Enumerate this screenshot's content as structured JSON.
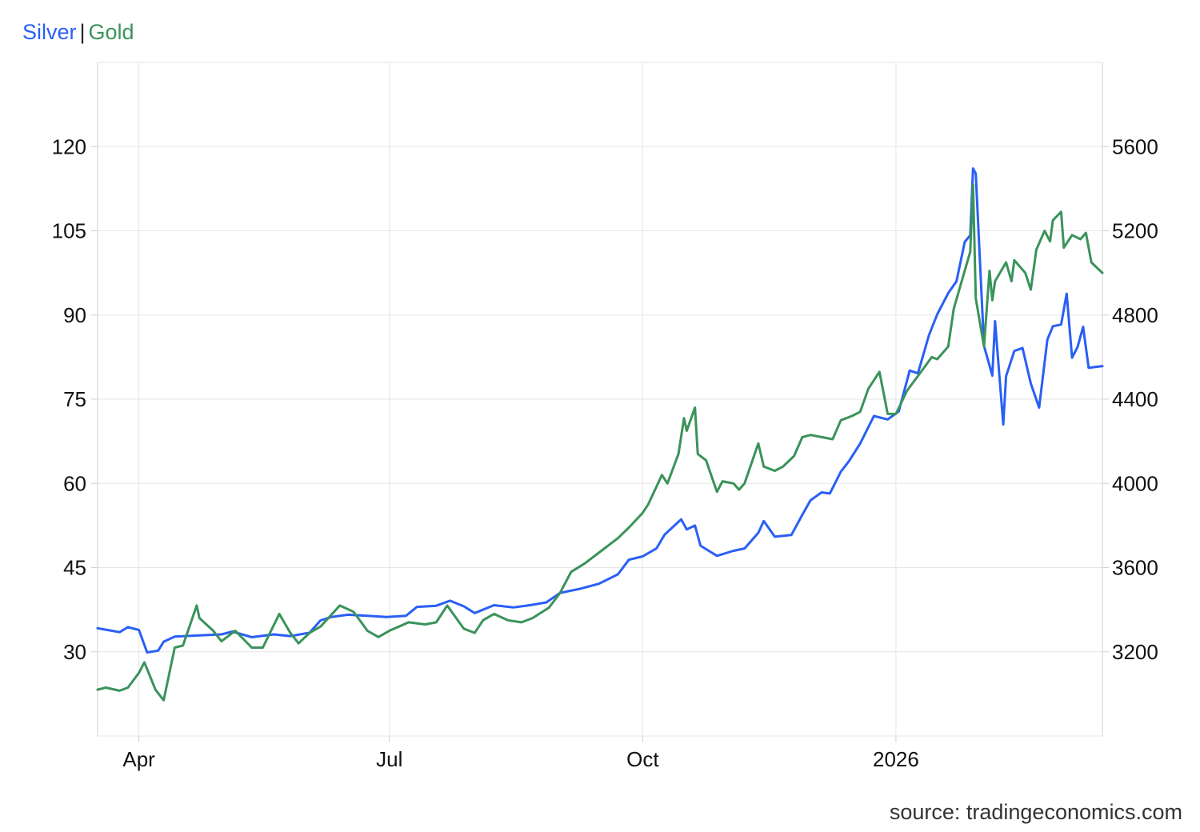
{
  "legend": {
    "left_label": "Silver",
    "separator": "|",
    "right_label": "Gold"
  },
  "source": "source: tradingeconomics.com",
  "colors": {
    "silver": "#2a5ff5",
    "gold": "#3a935a",
    "grid": "#e6e6e6",
    "axis": "#d0d0d0",
    "text": "#111111"
  },
  "chart_data": {
    "type": "line",
    "grid": true,
    "legend_position": "top-left",
    "x_tick_labels": [
      {
        "label": "Apr",
        "date": "2025-04-01"
      },
      {
        "label": "Jul",
        "date": "2025-07-01"
      },
      {
        "label": "Oct",
        "date": "2025-10-01"
      },
      {
        "label": "2026",
        "date": "2026-01-01"
      }
    ],
    "x_range": [
      "2025-03-17",
      "2026-03-17"
    ],
    "y_left": {
      "ticks": [
        30,
        45,
        60,
        75,
        90,
        105,
        120
      ],
      "range": [
        15,
        135
      ]
    },
    "y_right": {
      "ticks": [
        3200,
        3600,
        4000,
        4400,
        4800,
        5200,
        5600
      ],
      "range": [
        2800,
        6000
      ]
    },
    "series": [
      {
        "name": "Silver",
        "axis": "left",
        "points": [
          [
            "2025-03-17",
            34.2
          ],
          [
            "2025-03-25",
            33.5
          ],
          [
            "2025-03-28",
            34.4
          ],
          [
            "2025-04-01",
            33.9
          ],
          [
            "2025-04-04",
            29.9
          ],
          [
            "2025-04-08",
            30.2
          ],
          [
            "2025-04-10",
            31.8
          ],
          [
            "2025-04-14",
            32.7
          ],
          [
            "2025-04-22",
            32.9
          ],
          [
            "2025-05-01",
            33.1
          ],
          [
            "2025-05-05",
            33.6
          ],
          [
            "2025-05-12",
            32.6
          ],
          [
            "2025-05-20",
            33.1
          ],
          [
            "2025-05-26",
            32.8
          ],
          [
            "2025-06-02",
            33.4
          ],
          [
            "2025-06-06",
            35.6
          ],
          [
            "2025-06-10",
            36.2
          ],
          [
            "2025-06-16",
            36.6
          ],
          [
            "2025-06-23",
            36.4
          ],
          [
            "2025-06-30",
            36.2
          ],
          [
            "2025-07-07",
            36.4
          ],
          [
            "2025-07-11",
            38.0
          ],
          [
            "2025-07-18",
            38.2
          ],
          [
            "2025-07-23",
            39.1
          ],
          [
            "2025-07-28",
            38.1
          ],
          [
            "2025-08-01",
            36.9
          ],
          [
            "2025-08-08",
            38.3
          ],
          [
            "2025-08-15",
            37.9
          ],
          [
            "2025-08-21",
            38.3
          ],
          [
            "2025-08-27",
            38.8
          ],
          [
            "2025-09-01",
            40.5
          ],
          [
            "2025-09-08",
            41.2
          ],
          [
            "2025-09-15",
            42.1
          ],
          [
            "2025-09-22",
            43.8
          ],
          [
            "2025-09-26",
            46.4
          ],
          [
            "2025-10-01",
            47.0
          ],
          [
            "2025-10-06",
            48.4
          ],
          [
            "2025-10-09",
            50.9
          ],
          [
            "2025-10-13",
            52.7
          ],
          [
            "2025-10-15",
            53.6
          ],
          [
            "2025-10-17",
            51.8
          ],
          [
            "2025-10-20",
            52.5
          ],
          [
            "2025-10-22",
            48.9
          ],
          [
            "2025-10-28",
            47.1
          ],
          [
            "2025-11-03",
            48.0
          ],
          [
            "2025-11-07",
            48.4
          ],
          [
            "2025-11-12",
            51.2
          ],
          [
            "2025-11-14",
            53.3
          ],
          [
            "2025-11-18",
            50.5
          ],
          [
            "2025-11-24",
            50.8
          ],
          [
            "2025-11-28",
            54.4
          ],
          [
            "2025-12-01",
            57.0
          ],
          [
            "2025-12-05",
            58.4
          ],
          [
            "2025-12-08",
            58.2
          ],
          [
            "2025-12-12",
            62.1
          ],
          [
            "2025-12-15",
            64.0
          ],
          [
            "2025-12-19",
            67.1
          ],
          [
            "2025-12-24",
            72.0
          ],
          [
            "2025-12-29",
            71.4
          ],
          [
            "2026-01-02",
            72.8
          ],
          [
            "2026-01-06",
            80.1
          ],
          [
            "2026-01-09",
            79.6
          ],
          [
            "2026-01-13",
            86.4
          ],
          [
            "2026-01-16",
            90.1
          ],
          [
            "2026-01-20",
            93.9
          ],
          [
            "2026-01-23",
            96.0
          ],
          [
            "2026-01-26",
            103.0
          ],
          [
            "2026-01-28",
            104.2
          ],
          [
            "2026-01-29",
            116.1
          ],
          [
            "2026-01-30",
            115.2
          ],
          [
            "2026-02-02",
            84.5
          ],
          [
            "2026-02-05",
            79.2
          ],
          [
            "2026-02-06",
            88.9
          ],
          [
            "2026-02-09",
            70.5
          ],
          [
            "2026-02-10",
            79.1
          ],
          [
            "2026-02-13",
            83.6
          ],
          [
            "2026-02-16",
            84.1
          ],
          [
            "2026-02-19",
            77.8
          ],
          [
            "2026-02-22",
            73.5
          ],
          [
            "2026-02-25",
            85.6
          ],
          [
            "2026-02-27",
            88.0
          ],
          [
            "2026-03-02",
            88.3
          ],
          [
            "2026-03-04",
            93.8
          ],
          [
            "2026-03-06",
            82.4
          ],
          [
            "2026-03-08",
            84.3
          ],
          [
            "2026-03-10",
            87.9
          ],
          [
            "2026-03-12",
            80.6
          ],
          [
            "2026-03-17",
            80.9
          ]
        ]
      },
      {
        "name": "Gold",
        "axis": "right",
        "points": [
          [
            "2025-03-17",
            3020
          ],
          [
            "2025-03-20",
            3030
          ],
          [
            "2025-03-25",
            3015
          ],
          [
            "2025-03-28",
            3030
          ],
          [
            "2025-04-01",
            3100
          ],
          [
            "2025-04-03",
            3150
          ],
          [
            "2025-04-07",
            3020
          ],
          [
            "2025-04-10",
            2970
          ],
          [
            "2025-04-14",
            3220
          ],
          [
            "2025-04-17",
            3230
          ],
          [
            "2025-04-22",
            3420
          ],
          [
            "2025-04-23",
            3360
          ],
          [
            "2025-04-28",
            3300
          ],
          [
            "2025-05-01",
            3250
          ],
          [
            "2025-05-06",
            3300
          ],
          [
            "2025-05-12",
            3220
          ],
          [
            "2025-05-16",
            3220
          ],
          [
            "2025-05-22",
            3380
          ],
          [
            "2025-05-26",
            3290
          ],
          [
            "2025-05-29",
            3240
          ],
          [
            "2025-06-02",
            3290
          ],
          [
            "2025-06-06",
            3320
          ],
          [
            "2025-06-13",
            3420
          ],
          [
            "2025-06-18",
            3390
          ],
          [
            "2025-06-23",
            3300
          ],
          [
            "2025-06-27",
            3270
          ],
          [
            "2025-07-01",
            3300
          ],
          [
            "2025-07-08",
            3340
          ],
          [
            "2025-07-14",
            3330
          ],
          [
            "2025-07-18",
            3340
          ],
          [
            "2025-07-22",
            3420
          ],
          [
            "2025-07-28",
            3310
          ],
          [
            "2025-08-01",
            3290
          ],
          [
            "2025-08-04",
            3350
          ],
          [
            "2025-08-08",
            3380
          ],
          [
            "2025-08-13",
            3350
          ],
          [
            "2025-08-18",
            3340
          ],
          [
            "2025-08-22",
            3360
          ],
          [
            "2025-08-28",
            3410
          ],
          [
            "2025-09-01",
            3480
          ],
          [
            "2025-09-05",
            3580
          ],
          [
            "2025-09-10",
            3620
          ],
          [
            "2025-09-16",
            3680
          ],
          [
            "2025-09-22",
            3740
          ],
          [
            "2025-09-26",
            3790
          ],
          [
            "2025-10-01",
            3860
          ],
          [
            "2025-10-03",
            3900
          ],
          [
            "2025-10-08",
            4040
          ],
          [
            "2025-10-10",
            4000
          ],
          [
            "2025-10-14",
            4140
          ],
          [
            "2025-10-16",
            4310
          ],
          [
            "2025-10-17",
            4250
          ],
          [
            "2025-10-20",
            4360
          ],
          [
            "2025-10-21",
            4140
          ],
          [
            "2025-10-24",
            4110
          ],
          [
            "2025-10-28",
            3960
          ],
          [
            "2025-10-30",
            4010
          ],
          [
            "2025-11-03",
            4000
          ],
          [
            "2025-11-05",
            3970
          ],
          [
            "2025-11-07",
            4000
          ],
          [
            "2025-11-12",
            4190
          ],
          [
            "2025-11-14",
            4080
          ],
          [
            "2025-11-18",
            4060
          ],
          [
            "2025-11-21",
            4080
          ],
          [
            "2025-11-25",
            4130
          ],
          [
            "2025-11-28",
            4220
          ],
          [
            "2025-12-01",
            4230
          ],
          [
            "2025-12-05",
            4220
          ],
          [
            "2025-12-09",
            4210
          ],
          [
            "2025-12-12",
            4300
          ],
          [
            "2025-12-16",
            4320
          ],
          [
            "2025-12-19",
            4340
          ],
          [
            "2025-12-22",
            4450
          ],
          [
            "2025-12-26",
            4530
          ],
          [
            "2025-12-29",
            4330
          ],
          [
            "2026-01-01",
            4330
          ],
          [
            "2026-01-05",
            4440
          ],
          [
            "2026-01-09",
            4510
          ],
          [
            "2026-01-14",
            4600
          ],
          [
            "2026-01-16",
            4590
          ],
          [
            "2026-01-20",
            4650
          ],
          [
            "2026-01-22",
            4830
          ],
          [
            "2026-01-26",
            5010
          ],
          [
            "2026-01-28",
            5100
          ],
          [
            "2026-01-29",
            5420
          ],
          [
            "2026-01-30",
            4880
          ],
          [
            "2026-02-02",
            4650
          ],
          [
            "2026-02-04",
            5010
          ],
          [
            "2026-02-05",
            4870
          ],
          [
            "2026-02-06",
            4960
          ],
          [
            "2026-02-10",
            5050
          ],
          [
            "2026-02-12",
            4960
          ],
          [
            "2026-02-13",
            5060
          ],
          [
            "2026-02-17",
            5000
          ],
          [
            "2026-02-19",
            4920
          ],
          [
            "2026-02-21",
            5110
          ],
          [
            "2026-02-24",
            5200
          ],
          [
            "2026-02-26",
            5150
          ],
          [
            "2026-02-27",
            5250
          ],
          [
            "2026-03-02",
            5290
          ],
          [
            "2026-03-03",
            5120
          ],
          [
            "2026-03-06",
            5180
          ],
          [
            "2026-03-09",
            5160
          ],
          [
            "2026-03-11",
            5190
          ],
          [
            "2026-03-13",
            5050
          ],
          [
            "2026-03-17",
            5000
          ]
        ]
      }
    ]
  }
}
